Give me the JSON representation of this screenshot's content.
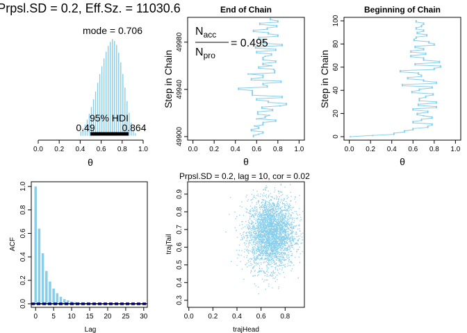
{
  "colors": {
    "accent": "#87ceeb",
    "hdi": "#000000",
    "ci": "#00008b",
    "axis": "#000000"
  },
  "chart_data": [
    {
      "panel": "posterior-histogram",
      "type": "bar",
      "title": "Prpsl.SD = 0.2, Eff.Sz. = 11030.6",
      "xlabel": "θ",
      "xlim": [
        0,
        1
      ],
      "x_ticks": [
        "0.0",
        "0.2",
        "0.4",
        "0.6",
        "0.8",
        "1.0"
      ],
      "x_tick_values": [
        0,
        0.2,
        0.4,
        0.6,
        0.8,
        1.0
      ],
      "bins": [
        {
          "x": 0.4,
          "h": 0.05
        },
        {
          "x": 0.42,
          "h": 0.08
        },
        {
          "x": 0.44,
          "h": 0.12
        },
        {
          "x": 0.46,
          "h": 0.17
        },
        {
          "x": 0.48,
          "h": 0.23
        },
        {
          "x": 0.5,
          "h": 0.3
        },
        {
          "x": 0.52,
          "h": 0.38
        },
        {
          "x": 0.54,
          "h": 0.46
        },
        {
          "x": 0.56,
          "h": 0.55
        },
        {
          "x": 0.58,
          "h": 0.64
        },
        {
          "x": 0.6,
          "h": 0.72
        },
        {
          "x": 0.62,
          "h": 0.8
        },
        {
          "x": 0.64,
          "h": 0.87
        },
        {
          "x": 0.66,
          "h": 0.93
        },
        {
          "x": 0.68,
          "h": 0.97
        },
        {
          "x": 0.7,
          "h": 1.0
        },
        {
          "x": 0.72,
          "h": 0.98
        },
        {
          "x": 0.74,
          "h": 0.94
        },
        {
          "x": 0.76,
          "h": 0.86
        },
        {
          "x": 0.78,
          "h": 0.76
        },
        {
          "x": 0.8,
          "h": 0.64
        },
        {
          "x": 0.82,
          "h": 0.5
        },
        {
          "x": 0.84,
          "h": 0.36
        },
        {
          "x": 0.86,
          "h": 0.24
        },
        {
          "x": 0.88,
          "h": 0.14
        },
        {
          "x": 0.9,
          "h": 0.07
        },
        {
          "x": 0.92,
          "h": 0.03
        }
      ],
      "mode_label": "mode = 0.706",
      "hdi_label": "95% HDI",
      "hdi": [
        0.49,
        0.864
      ],
      "hdi_low_label": "0.49",
      "hdi_high_label": "0.864"
    },
    {
      "panel": "end-of-chain",
      "type": "line",
      "title": "End of Chain",
      "xlabel": "θ",
      "ylabel": "Step in Chain",
      "xlim": [
        -0.05,
        1.05
      ],
      "ylim": [
        49897,
        50001
      ],
      "x_ticks": [
        "0.0",
        "0.2",
        "0.4",
        "0.6",
        "0.8",
        "1.0"
      ],
      "x_tick_values": [
        0,
        0.2,
        0.4,
        0.6,
        0.8,
        1.0
      ],
      "y_ticks": [
        "49900",
        "49940",
        "49980"
      ],
      "y_tick_values": [
        49900,
        49940,
        49980
      ],
      "annotation_num": "N",
      "annotation_num_sub": "acc",
      "annotation_den": "N",
      "annotation_den_sub": "pro",
      "annotation_value": "= 0.495",
      "y_start": 49900,
      "values": [
        0.57,
        0.57,
        0.62,
        0.66,
        0.66,
        0.55,
        0.55,
        0.62,
        0.62,
        0.58,
        0.66,
        0.66,
        0.66,
        0.78,
        0.78,
        0.6,
        0.68,
        0.68,
        0.72,
        0.61,
        0.61,
        0.61,
        0.75,
        0.75,
        0.65,
        0.65,
        0.82,
        0.88,
        0.88,
        0.71,
        0.71,
        0.6,
        0.6,
        0.84,
        0.84,
        0.56,
        0.56,
        0.56,
        0.56,
        0.56,
        0.43,
        0.43,
        0.7,
        0.7,
        0.66,
        0.66,
        0.83,
        0.83,
        0.55,
        0.55,
        0.66,
        0.66,
        0.66,
        0.52,
        0.77,
        0.77,
        0.77,
        0.76,
        0.62,
        0.62,
        0.74,
        0.66,
        0.66,
        0.78,
        0.78,
        0.66,
        0.66,
        0.66,
        0.68,
        0.74,
        0.74,
        0.6,
        0.6,
        0.78,
        0.78,
        0.59,
        0.59,
        0.84,
        0.84,
        0.66,
        0.66,
        0.67,
        0.67,
        0.62,
        0.62,
        0.8,
        0.8,
        0.71,
        0.71,
        0.57,
        0.57,
        0.7,
        0.7,
        0.79,
        0.79,
        0.63,
        0.63,
        0.8,
        0.8,
        0.73,
        0.73
      ]
    },
    {
      "panel": "beginning-of-chain",
      "type": "line",
      "title": "Beginning of Chain",
      "xlabel": "θ",
      "ylabel": "Step in Chain",
      "xlim": [
        -0.05,
        1.05
      ],
      "ylim": [
        -3,
        103
      ],
      "x_ticks": [
        "0.0",
        "0.2",
        "0.4",
        "0.6",
        "0.8",
        "1.0"
      ],
      "x_tick_values": [
        0,
        0.2,
        0.4,
        0.6,
        0.8,
        1.0
      ],
      "y_ticks": [
        "0",
        "20",
        "40",
        "60",
        "80",
        "100"
      ],
      "y_tick_values": [
        0,
        20,
        40,
        60,
        80,
        100
      ],
      "values": [
        0.01,
        0.22,
        0.42,
        0.42,
        0.52,
        0.52,
        0.6,
        0.6,
        0.74,
        0.74,
        0.78,
        0.78,
        0.6,
        0.6,
        0.68,
        0.68,
        0.78,
        0.78,
        0.7,
        0.64,
        0.64,
        0.74,
        0.74,
        0.6,
        0.6,
        0.82,
        0.82,
        0.65,
        0.65,
        0.82,
        0.82,
        0.66,
        0.66,
        0.66,
        0.72,
        0.72,
        0.79,
        0.79,
        0.59,
        0.59,
        0.66,
        0.66,
        0.78,
        0.78,
        0.5,
        0.5,
        0.82,
        0.82,
        0.7,
        0.7,
        0.55,
        0.55,
        0.68,
        0.68,
        0.65,
        0.65,
        0.48,
        0.48,
        0.8,
        0.8,
        0.86,
        0.86,
        0.62,
        0.62,
        0.85,
        0.85,
        0.7,
        0.7,
        0.7,
        0.58,
        0.58,
        0.72,
        0.72,
        0.58,
        0.58,
        0.7,
        0.7,
        0.62,
        0.62,
        0.8,
        0.8,
        0.75,
        0.75,
        0.61,
        0.61,
        0.63,
        0.63,
        0.73,
        0.73,
        0.64,
        0.64,
        0.7,
        0.7,
        0.63,
        0.63,
        0.68,
        0.68,
        0.7,
        0.7,
        0.63,
        0.63
      ]
    },
    {
      "panel": "acf",
      "type": "bar",
      "title": "",
      "xlabel": "Lag",
      "ylabel": "ACF",
      "xlim": [
        -1.2,
        31
      ],
      "ylim": [
        -0.03,
        1.04
      ],
      "x_ticks": [
        "0",
        "5",
        "10",
        "15",
        "20",
        "25",
        "30"
      ],
      "x_tick_values": [
        0,
        5,
        10,
        15,
        20,
        25,
        30
      ],
      "y_ticks": [
        "0.0",
        "0.2",
        "0.4",
        "0.6",
        "0.8",
        "1.0"
      ],
      "y_tick_values": [
        0,
        0.2,
        0.4,
        0.6,
        0.8,
        1.0
      ],
      "lags": [
        0,
        1,
        2,
        3,
        4,
        5,
        6,
        7,
        8,
        9,
        10,
        11,
        12,
        13,
        14,
        15,
        16,
        17,
        18,
        19,
        20,
        21,
        22,
        23,
        24,
        25,
        26,
        27,
        28,
        29,
        30
      ],
      "values": [
        1.0,
        0.64,
        0.43,
        0.28,
        0.19,
        0.13,
        0.09,
        0.06,
        0.04,
        0.03,
        0.02,
        0.015,
        0.012,
        0.01,
        0.008,
        0.007,
        0.006,
        0.005,
        0.005,
        0.004,
        0.004,
        0.003,
        0.003,
        0.003,
        0.003,
        0.003,
        0.003,
        0.002,
        0.002,
        0.002,
        0.002
      ],
      "ci": [
        -0.006,
        0.006
      ]
    },
    {
      "panel": "lag-scatter",
      "type": "scatter",
      "title": "Prpsl.SD = 0.2, lag = 10, cor = 0.02",
      "xlabel": "trajHead",
      "ylabel": "trajTail",
      "xlim": [
        -0.01,
        0.96
      ],
      "ylim": [
        0.26,
        0.97
      ],
      "x_ticks": [
        "0.0",
        "0.2",
        "0.4",
        "0.6",
        "0.8"
      ],
      "x_tick_values": [
        0,
        0.2,
        0.4,
        0.6,
        0.8
      ],
      "y_ticks": [
        "0.3",
        "0.4",
        "0.5",
        "0.6",
        "0.7",
        "0.8",
        "0.9"
      ],
      "y_tick_values": [
        0.3,
        0.4,
        0.5,
        0.6,
        0.7,
        0.8,
        0.9
      ],
      "distribution": {
        "x_mean": 0.68,
        "x_sd": 0.1,
        "y_mean": 0.68,
        "y_sd": 0.1,
        "correlation": 0.02,
        "x_range": [
          0.3,
          0.95
        ],
        "y_range": [
          0.28,
          0.96
        ]
      }
    }
  ]
}
